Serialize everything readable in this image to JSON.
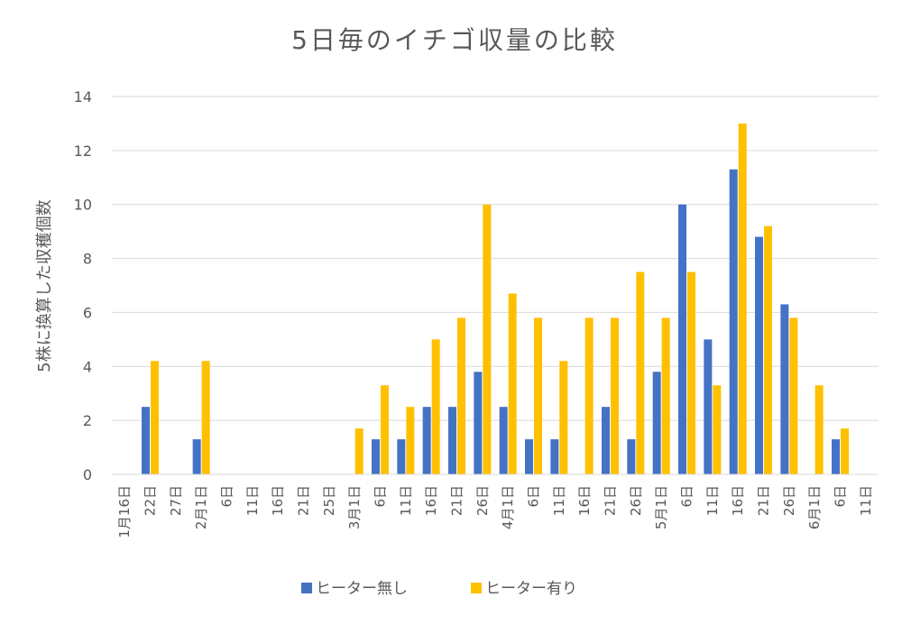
{
  "chart_data": {
    "type": "bar",
    "title": "5日毎のイチゴ収量の比較",
    "xlabel": "",
    "ylabel": "5株に換算した収穫個数",
    "ylim": [
      0,
      14
    ],
    "yticks": [
      0,
      2,
      4,
      6,
      8,
      10,
      12,
      14
    ],
    "grid": true,
    "legend_position": "bottom",
    "categories": [
      "1月16日",
      "22日",
      "27日",
      "2月1日",
      "6日",
      "11日",
      "16日",
      "21日",
      "25日",
      "3月1日",
      "6日",
      "11日",
      "16日",
      "21日",
      "26日",
      "4月1日",
      "6日",
      "11日",
      "16日",
      "21日",
      "26日",
      "5月1日",
      "6日",
      "11日",
      "16日",
      "21日",
      "26日",
      "6月1日",
      "6日",
      "11日"
    ],
    "series": [
      {
        "name": "ヒーター無し",
        "color": "#4472C4",
        "values": [
          0,
          2.5,
          0,
          1.3,
          0,
          0,
          0,
          0,
          0,
          0,
          1.3,
          1.3,
          2.5,
          2.5,
          3.8,
          2.5,
          1.3,
          1.3,
          0,
          2.5,
          1.3,
          3.8,
          10,
          5,
          11.3,
          8.8,
          6.3,
          0,
          1.3,
          0
        ]
      },
      {
        "name": "ヒーター有り",
        "color": "#FFC000",
        "values": [
          0,
          4.2,
          0,
          4.2,
          0,
          0,
          0,
          0,
          0,
          1.7,
          3.3,
          2.5,
          5,
          5.8,
          10,
          6.7,
          5.8,
          4.2,
          5.8,
          5.8,
          7.5,
          5.8,
          7.5,
          3.3,
          13,
          9.2,
          5.8,
          3.3,
          1.7,
          0
        ]
      }
    ]
  }
}
